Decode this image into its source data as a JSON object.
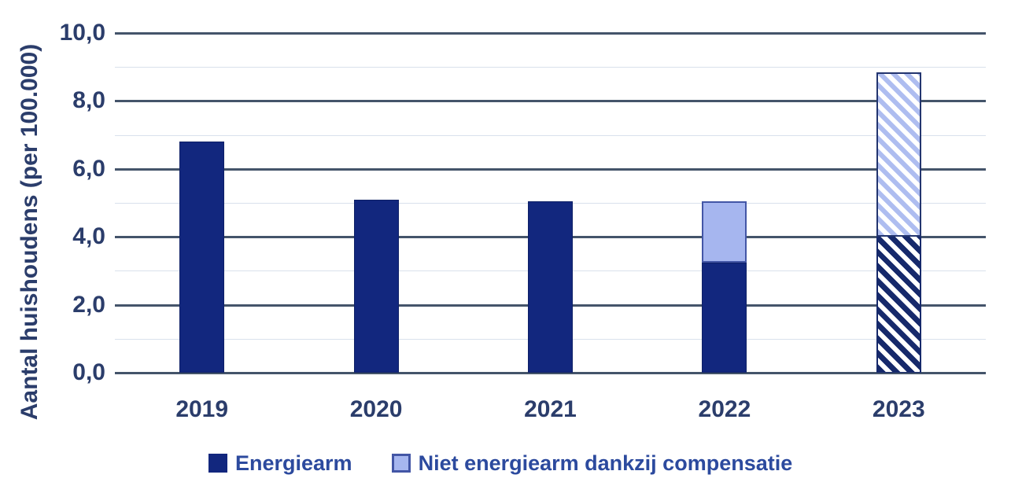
{
  "chart_data": {
    "type": "bar",
    "stacked": true,
    "title": "",
    "xlabel": "",
    "ylabel": "Aantal huishoudens (per 100.000)",
    "ylim": [
      0,
      10
    ],
    "y_major_gridlines": [
      0,
      2,
      4,
      6,
      8,
      10
    ],
    "y_minor_gridlines": [
      1,
      3,
      5,
      7,
      9
    ],
    "y_tick_labels": [
      {
        "value": 0,
        "label": "0,0"
      },
      {
        "value": 2,
        "label": "2,0"
      },
      {
        "value": 4,
        "label": "4,0"
      },
      {
        "value": 6,
        "label": "6,0"
      },
      {
        "value": 8,
        "label": "8,0"
      },
      {
        "value": 10,
        "label": "10,0"
      }
    ],
    "decimal_separator": ",",
    "grid": "horizontal",
    "legend_position": "bottom",
    "categories": [
      "2019",
      "2020",
      "2021",
      "2022",
      "2023"
    ],
    "series": [
      {
        "name": "Energiearm",
        "values": [
          6.8,
          5.1,
          5.05,
          3.25,
          4.0
        ]
      },
      {
        "name": "Niet energiearm dankzij compensatie",
        "values": [
          0,
          0,
          0,
          1.8,
          4.85
        ]
      }
    ],
    "bars": [
      {
        "category": "2019",
        "segments": [
          {
            "series": "Energiearm",
            "value": 6.8,
            "pattern": "navy-solid"
          }
        ]
      },
      {
        "category": "2020",
        "segments": [
          {
            "series": "Energiearm",
            "value": 5.1,
            "pattern": "navy-solid"
          }
        ]
      },
      {
        "category": "2021",
        "segments": [
          {
            "series": "Energiearm",
            "value": 5.05,
            "pattern": "navy-solid"
          }
        ]
      },
      {
        "category": "2022",
        "segments": [
          {
            "series": "Energiearm",
            "value": 3.25,
            "pattern": "navy-solid"
          },
          {
            "series": "Niet energiearm dankzij compensatie",
            "value": 1.8,
            "pattern": "lightblue-solid"
          }
        ]
      },
      {
        "category": "2023",
        "segments": [
          {
            "series": "Energiearm",
            "value": 4.0,
            "pattern": "navy-hatch"
          },
          {
            "series": "Niet energiearm dankzij compensatie",
            "value": 4.85,
            "pattern": "lightblue-hatch"
          }
        ]
      }
    ]
  },
  "legend": {
    "items": [
      {
        "label": "Energiearm",
        "swatch": "navy-solid"
      },
      {
        "label": "Niet energiearm dankzij compensatie",
        "swatch": "lightblue-solid"
      }
    ]
  },
  "colors": {
    "bar_navy": "#12277E",
    "bar_navy_edge": "#0E2066",
    "bar_lightblue_fill": "#A6B6EF",
    "bar_lightblue_border": "#4356A6",
    "hatch_dark_stripe": "#16296B",
    "hatch_light_stripe": "#AEBDF0",
    "hatch_light_border": "#23356F",
    "gridline_major": "#44546A",
    "gridline_minor": "#D9E1EC",
    "axis_text": "#2B3D6B",
    "legend_text": "#2C4A9E",
    "background": "#FFFFFF"
  }
}
